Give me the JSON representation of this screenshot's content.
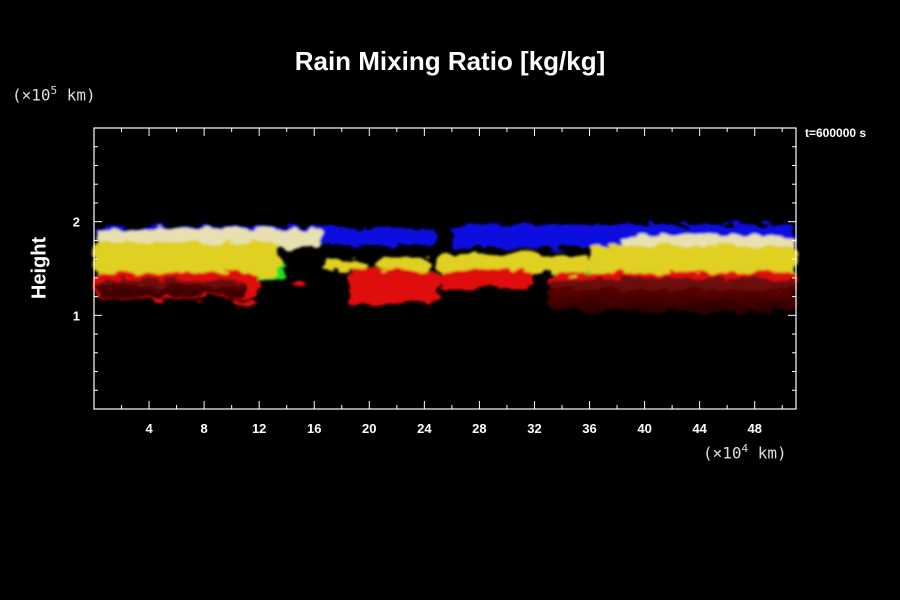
{
  "chart_data": {
    "type": "heatmap",
    "title": "Rain Mixing Ratio [kg/kg]",
    "ylabel": "Height",
    "y_unit_prefix": "(×10",
    "y_unit_exp": "5",
    "y_unit_suffix": " km)",
    "x_unit_prefix": "(×10",
    "x_unit_exp": "4",
    "x_unit_suffix": " km)",
    "time_label": "t=600000 s",
    "xlim": [
      0,
      51
    ],
    "ylim": [
      0,
      3
    ],
    "x_ticks": [
      "4",
      "8",
      "12",
      "16",
      "20",
      "24",
      "28",
      "32",
      "36",
      "40",
      "44",
      "48"
    ],
    "x_tick_values": [
      4,
      8,
      12,
      16,
      20,
      24,
      28,
      32,
      36,
      40,
      44,
      48
    ],
    "y_ticks": [
      "1",
      "2"
    ],
    "y_tick_values": [
      1,
      2
    ],
    "colors": {
      "top": "#1010e0",
      "upper": "#e8e0b0",
      "middle": "#e0d020",
      "edge": "#20e020",
      "lower": "#e01010",
      "base": "#400000"
    },
    "layers": [
      {
        "name": "blue",
        "segments": [
          [
            0.1,
            18.0,
            1.78,
            1.95
          ],
          [
            17.0,
            25.0,
            1.75,
            1.92
          ],
          [
            26.0,
            51.0,
            1.72,
            1.97
          ]
        ]
      },
      {
        "name": "cream",
        "segments": [
          [
            0.2,
            16.5,
            1.72,
            1.92
          ],
          [
            38.5,
            51.0,
            1.7,
            1.85
          ]
        ]
      },
      {
        "name": "green",
        "segments": [
          [
            1.5,
            14.0,
            1.4,
            1.55
          ],
          [
            35.0,
            51.0,
            1.4,
            1.56
          ]
        ]
      },
      {
        "name": "yellow",
        "segments": [
          [
            0.1,
            13.5,
            1.42,
            1.78
          ],
          [
            16.5,
            20.0,
            1.48,
            1.6
          ],
          [
            20.5,
            24.5,
            1.45,
            1.62
          ],
          [
            25.0,
            36.0,
            1.45,
            1.65
          ],
          [
            36.0,
            51.0,
            1.42,
            1.75
          ]
        ]
      },
      {
        "name": "red",
        "segments": [
          [
            0.1,
            12.0,
            1.18,
            1.45
          ],
          [
            14.2,
            15.5,
            1.28,
            1.38
          ],
          [
            18.5,
            25.0,
            1.12,
            1.48
          ],
          [
            25.0,
            32.0,
            1.28,
            1.48
          ],
          [
            33.0,
            51.0,
            1.05,
            1.45
          ]
        ]
      },
      {
        "name": "dark",
        "segments": [
          [
            0.3,
            11.0,
            1.2,
            1.38
          ],
          [
            33.0,
            51.0,
            1.05,
            1.4
          ]
        ]
      },
      {
        "name": "red-small",
        "segments": [
          [
            10.0,
            12.0,
            1.1,
            1.16
          ]
        ]
      }
    ]
  }
}
